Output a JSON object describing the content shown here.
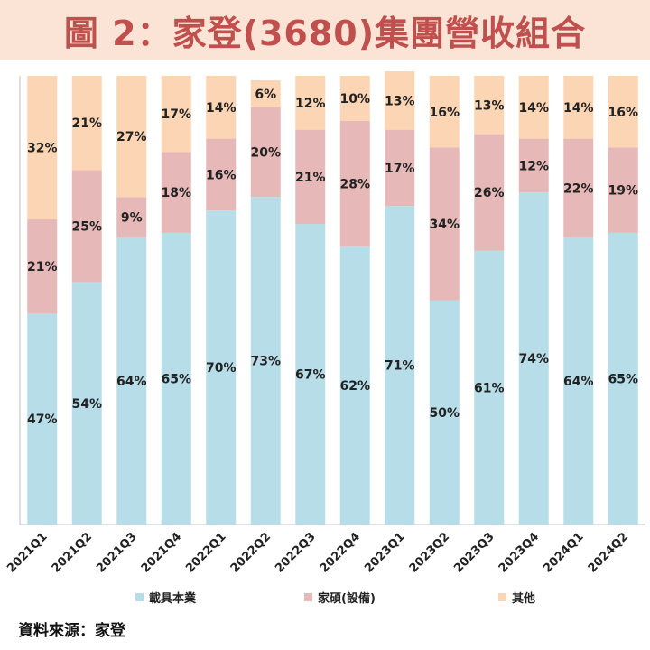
{
  "title": "圖 2：家登(3680)集團營收組合",
  "source": "資料來源：家登",
  "chart_data": {
    "type": "bar",
    "stacked": true,
    "percent": true,
    "ylim": [
      0,
      100
    ],
    "categories": [
      "2021Q1",
      "2021Q2",
      "2021Q3",
      "2021Q4",
      "2022Q1",
      "2022Q2",
      "2022Q3",
      "2022Q4",
      "2023Q1",
      "2023Q2",
      "2023Q3",
      "2023Q4",
      "2024Q1",
      "2024Q2"
    ],
    "series": [
      {
        "name": "載具本業",
        "color": "#b7dde8",
        "values": [
          47,
          54,
          64,
          65,
          70,
          73,
          67,
          62,
          71,
          50,
          61,
          74,
          64,
          65
        ]
      },
      {
        "name": "家碩(設備)",
        "color": "#e6b9b8",
        "values": [
          21,
          25,
          9,
          18,
          16,
          20,
          21,
          28,
          17,
          34,
          26,
          12,
          22,
          19
        ]
      },
      {
        "name": "其他",
        "color": "#fcd5b4",
        "values": [
          32,
          21,
          27,
          17,
          14,
          6,
          12,
          10,
          13,
          16,
          13,
          14,
          14,
          16
        ]
      }
    ],
    "legend_position": "bottom"
  }
}
